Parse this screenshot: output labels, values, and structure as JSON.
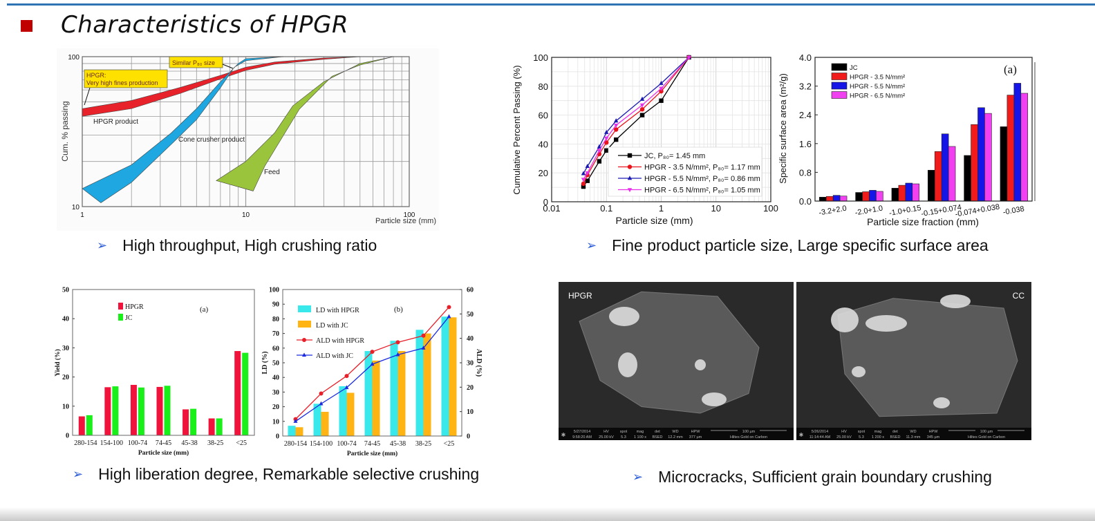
{
  "slide": {
    "title": "Characteristics of HPGR",
    "accent_color": "#c00000",
    "rule_color": "#2e74b5"
  },
  "bullets": [
    {
      "text": "High throughput, High crushing ratio"
    },
    {
      "text": "Fine product particle size, Large specific surface area"
    },
    {
      "text": "High liberation degree, Remarkable selective crushing"
    },
    {
      "text": "Microcracks, Sufficient grain boundary crushing"
    }
  ],
  "sem_images": [
    {
      "label": "HPGR",
      "info": [
        [
          "5/27/2014",
          "9:58:20 AM"
        ],
        [
          "HV",
          "25.00 kV"
        ],
        [
          "spot",
          "5.3"
        ],
        [
          "mag",
          "1 100 x"
        ],
        [
          "det",
          "BSED"
        ],
        [
          "WD",
          "12.2 mm"
        ],
        [
          "HPW",
          "377 µm"
        ],
        [
          "100 µm",
          "Hiltes Gold on Carbon"
        ]
      ]
    },
    {
      "label": "CC",
      "info": [
        [
          "5/26/2014",
          "11:14:44 AM"
        ],
        [
          "HV",
          "25.00 kV"
        ],
        [
          "spot",
          "5.3"
        ],
        [
          "mag",
          "1 200 x"
        ],
        [
          "det",
          "BSED"
        ],
        [
          "WD",
          "11.3 mm"
        ],
        [
          "HPW",
          "345 µm"
        ],
        [
          "100 µm",
          "Hiltes Gold on Carbon"
        ]
      ]
    }
  ],
  "chart_data": [
    {
      "type": "area",
      "title": "",
      "xlabel": "Particle size (mm)",
      "ylabel": "Cum. % passing",
      "xscale": "log",
      "yscale": "log",
      "xlim": [
        1,
        100
      ],
      "ylim": [
        10,
        100
      ],
      "xticks": [
        "1",
        "10",
        "100"
      ],
      "yticks": [
        "10",
        "100"
      ],
      "grid": true,
      "series": [
        {
          "name": "HPGR product",
          "color": "#e8222a",
          "upper": [
            [
              1,
              45
            ],
            [
              2,
              51
            ],
            [
              4,
              62.5
            ],
            [
              7,
              75
            ],
            [
              10,
              85
            ],
            [
              15,
              92
            ],
            [
              30,
              98
            ],
            [
              50,
              100
            ]
          ],
          "lower": [
            [
              1,
              40
            ],
            [
              2,
              45
            ],
            [
              4,
              57
            ],
            [
              7,
              71
            ],
            [
              10,
              81
            ],
            [
              15,
              89
            ],
            [
              30,
              96
            ],
            [
              50,
              100
            ]
          ]
        },
        {
          "name": "Cone crusher product",
          "color": "#1ea7e1",
          "upper": [
            [
              1,
              13.2
            ],
            [
              2,
              19
            ],
            [
              3.5,
              31
            ],
            [
              5,
              45
            ],
            [
              7,
              68
            ],
            [
              9,
              90
            ],
            [
              10,
              97
            ],
            [
              17,
              100
            ]
          ],
          "lower": [
            [
              1.3,
              10.6
            ],
            [
              2,
              14.5
            ],
            [
              3.5,
              26
            ],
            [
              5,
              38
            ],
            [
              7,
              62
            ],
            [
              8.5,
              85
            ],
            [
              10,
              94
            ],
            [
              17,
              100
            ]
          ]
        },
        {
          "name": "Feed",
          "color": "#9ac43b",
          "upper": [
            [
              6.6,
              14.9
            ],
            [
              10,
              20
            ],
            [
              15,
              31
            ],
            [
              19.4,
              47
            ],
            [
              30,
              68
            ],
            [
              50,
              90
            ],
            [
              80,
              100
            ]
          ],
          "lower": [
            [
              11.1,
              12.7
            ],
            [
              13.1,
              18.7
            ],
            [
              21.3,
              44.7
            ],
            [
              33.7,
              74
            ],
            [
              50,
              88
            ],
            [
              80,
              100
            ]
          ]
        }
      ],
      "annotations": {
        "hpgr_box_1": "HPGR:",
        "hpgr_box_2": "Very high fines production",
        "p80_box": "Similar P₈₀ size"
      }
    },
    {
      "type": "line",
      "title": "",
      "xlabel": "Particle size (mm)",
      "ylabel": "Cumulative Percent Passing (%)",
      "xscale": "log",
      "xlim": [
        0.01,
        100
      ],
      "ylim": [
        0,
        100
      ],
      "xticks": [
        "0.01",
        "0.1",
        "1",
        "10",
        "100"
      ],
      "yticks": [
        "0",
        "20",
        "40",
        "60",
        "80",
        "100"
      ],
      "grid": true,
      "legend_position": "bottom-right",
      "x": [
        0.038,
        0.045,
        0.074,
        0.1,
        0.15,
        0.45,
        1,
        3.2
      ],
      "series": [
        {
          "name": "JC, P₈₀= 1.45 mm",
          "color": "#000000",
          "marker": "square",
          "values": [
            10.5,
            14.5,
            28,
            35.5,
            43,
            60,
            70,
            100
          ]
        },
        {
          "name": "HPGR - 3.5 N/mm², P₈₀= 1.17 mm",
          "color": "#e8141c",
          "marker": "circle",
          "values": [
            12.5,
            18.5,
            33,
            41,
            50,
            64,
            76.5,
            100
          ]
        },
        {
          "name": "HPGR - 5.5 N/mm², P₈₀= 0.86 mm",
          "color": "#1a1ab0",
          "marker": "triangle",
          "values": [
            19.5,
            24.5,
            38,
            48,
            56,
            71,
            82,
            100
          ]
        },
        {
          "name": "HPGR - 6.5 N/mm², P₈₀= 1.05 mm",
          "color": "#e830e8",
          "marker": "triangle-down",
          "values": [
            15.5,
            20,
            35.5,
            44,
            53,
            67,
            78.5,
            100
          ]
        }
      ]
    },
    {
      "type": "bar",
      "title": "",
      "annotation": "(a)",
      "xlabel": "Particle size fraction (mm)",
      "ylabel": "Specific surface area (m²/g)",
      "ylim": [
        0,
        4
      ],
      "yticks": [
        "0.0",
        "0.8",
        "1.6",
        "2.4",
        "3.2",
        "4.0"
      ],
      "legend_position": "top-left",
      "categories": [
        "-3.2+2.0",
        "-2.0+1.0",
        "-1.0+0.15",
        "-0.15+0.074",
        "-0.074+0.038",
        "-0.038"
      ],
      "series": [
        {
          "name": "JC",
          "color": "#000000",
          "values": [
            0.11,
            0.24,
            0.36,
            0.86,
            1.27,
            2.07
          ]
        },
        {
          "name": "HPGR - 3.5 N/mm²",
          "color": "#f21b1b",
          "values": [
            0.13,
            0.26,
            0.44,
            1.38,
            2.13,
            2.95
          ]
        },
        {
          "name": "HPGR - 5.5 N/mm²",
          "color": "#1515e8",
          "values": [
            0.16,
            0.3,
            0.5,
            1.87,
            2.6,
            3.28
          ]
        },
        {
          "name": "HPGR - 6.5 N/mm²",
          "color": "#f040f0",
          "values": [
            0.14,
            0.27,
            0.48,
            1.52,
            2.44,
            3.0
          ]
        }
      ]
    },
    {
      "type": "bar",
      "title": "",
      "annotation": "(a)",
      "xlabel": "Particle size (mm)",
      "ylabel": "Yield (%)",
      "ylim": [
        0,
        50
      ],
      "yticks": [
        "0",
        "10",
        "20",
        "30",
        "40",
        "50"
      ],
      "legend_position": "top-left",
      "categories": [
        "280-154",
        "154-100",
        "100-74",
        "74-45",
        "45-38",
        "38-25",
        "<25"
      ],
      "series": [
        {
          "name": "HPGR",
          "color": "#f0143c",
          "values": [
            6.5,
            16.5,
            17.3,
            16.6,
            8.9,
            5.8,
            28.9
          ]
        },
        {
          "name": "JC",
          "color": "#19f019",
          "values": [
            6.9,
            16.8,
            16.4,
            17.0,
            9.1,
            5.8,
            28.3
          ]
        }
      ]
    },
    {
      "type": "bar",
      "title": "",
      "annotation": "(b)",
      "xlabel": "Particle size (mm)",
      "ylabel": "LD (%)",
      "y2label": "ALD (%)",
      "ylim": [
        0,
        100
      ],
      "y2lim": [
        0,
        60
      ],
      "yticks": [
        "0",
        "10",
        "20",
        "30",
        "40",
        "50",
        "60",
        "70",
        "80",
        "90",
        "100"
      ],
      "y2ticks": [
        "0",
        "10",
        "20",
        "30",
        "40",
        "50",
        "60"
      ],
      "legend_position": "top-left",
      "categories": [
        "280-154",
        "154-100",
        "100-74",
        "74-45",
        "45-38",
        "38-25",
        "<25"
      ],
      "series": [
        {
          "name": "LD with HPGR",
          "color": "#38e8ea",
          "kind": "bar",
          "axis": "left",
          "values": [
            7,
            22,
            34,
            58,
            65,
            72.5,
            81.5
          ]
        },
        {
          "name": "LD with JC",
          "color": "#ffb414",
          "kind": "bar",
          "axis": "left",
          "values": [
            6,
            16.5,
            29.5,
            51.5,
            58,
            70,
            81
          ]
        },
        {
          "name": "ALD with HPGR",
          "color": "#e8202a",
          "kind": "line",
          "marker": "circle",
          "axis": "right",
          "values": [
            6.9,
            17.4,
            24.6,
            34.5,
            38.4,
            41.1,
            52.8
          ]
        },
        {
          "name": "ALD with JC",
          "color": "#1a2ae0",
          "kind": "line",
          "marker": "triangle",
          "axis": "right",
          "values": [
            6.0,
            13.2,
            19.8,
            29.4,
            33.3,
            36.0,
            48.9
          ]
        }
      ]
    }
  ]
}
